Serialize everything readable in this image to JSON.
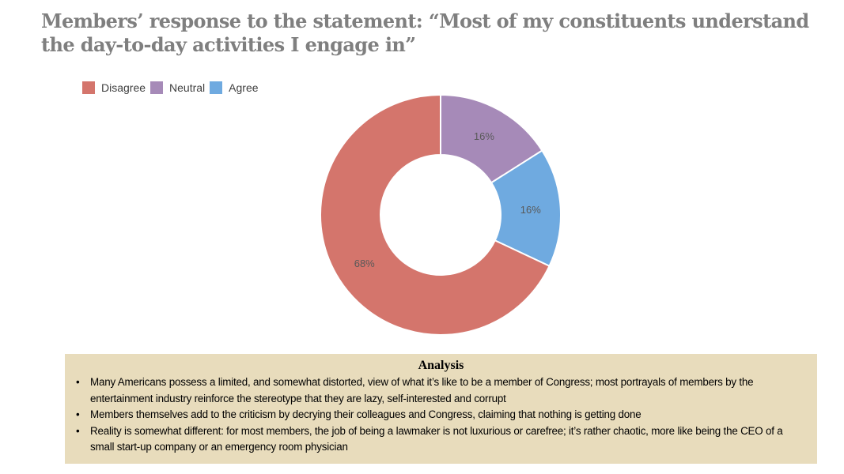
{
  "title": "Members’ response to the statement: “Most of my constituents understand the day-to-day activities I engage in”",
  "legend": [
    {
      "label": "Disagree",
      "color": "#d4756c"
    },
    {
      "label": "Neutral",
      "color": "#a68ab8"
    },
    {
      "label": "Agree",
      "color": "#6faae0"
    }
  ],
  "chart_data": {
    "type": "pie",
    "subtype": "donut",
    "title": "Members’ response to the statement: “Most of my constituents understand the day-to-day activities I engage in”",
    "categories": [
      "Disagree",
      "Neutral",
      "Agree"
    ],
    "values": [
      68,
      16,
      16
    ],
    "labels": [
      "68%",
      "16%",
      "16%"
    ],
    "colors": [
      "#d4756c",
      "#a68ab8",
      "#6faae0"
    ],
    "legend_position": "top-left",
    "start_angle_deg": 0,
    "direction": "clockwise, starting with Neutral at 12 o'clock"
  },
  "analysis": {
    "title": "Analysis",
    "bullets": [
      "Many Americans possess a limited, and somewhat distorted, view of what it’s like to be a member of Congress; most portrayals of members by the entertainment industry reinforce the stereotype that they are lazy, self-interested and corrupt",
      "Members themselves add to the criticism by decrying their colleagues and Congress, claiming that nothing is getting done",
      "Reality is somewhat different: for most members, the job of being a lawmaker is not luxurious or carefree; it’s rather chaotic, more like being the CEO of a small start-up company or an emergency room physician"
    ],
    "bullet_glyph": "•",
    "background": "#e8dcbc"
  }
}
